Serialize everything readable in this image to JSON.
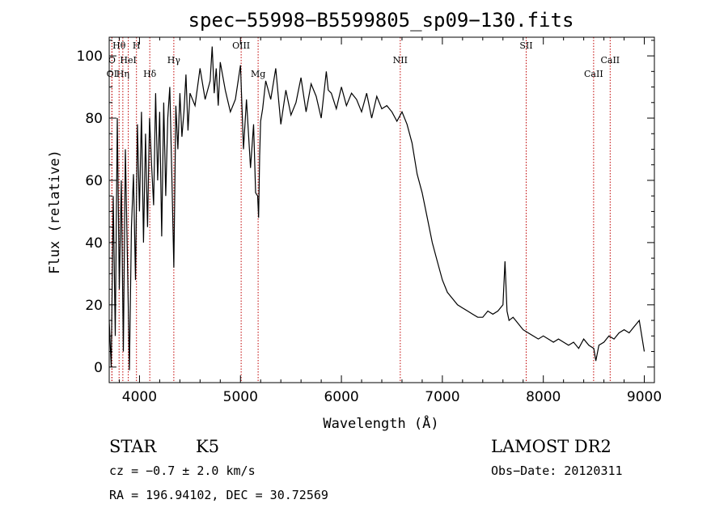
{
  "chart_data": {
    "type": "line",
    "title": "spec−55998−B5599805_sp09−130.fits",
    "xlabel": "Wavelength (Å)",
    "ylabel": "Flux (relative)",
    "xlim": [
      3700,
      9100
    ],
    "ylim": [
      -5,
      106
    ],
    "x_ticks": [
      4000,
      5000,
      6000,
      7000,
      8000,
      9000
    ],
    "y_ticks": [
      0,
      20,
      40,
      60,
      80,
      100
    ],
    "grid": false,
    "series": [
      {
        "x": [
          3700,
          3720,
          3740,
          3760,
          3780,
          3800,
          3820,
          3840,
          3860,
          3880,
          3900,
          3920,
          3940,
          3960,
          3980,
          4000,
          4020,
          4040,
          4060,
          4080,
          4100,
          4120,
          4140,
          4160,
          4180,
          4200,
          4220,
          4240,
          4260,
          4280,
          4300,
          4320,
          4340,
          4360,
          4380,
          4400,
          4420,
          4440,
          4460,
          4480,
          4500,
          4550,
          4600,
          4650,
          4700,
          4720,
          4740,
          4760,
          4780,
          4800,
          4850,
          4900,
          4950,
          5000,
          5030,
          5060,
          5100,
          5130,
          5150,
          5170,
          5180,
          5190,
          5200,
          5220,
          5250,
          5300,
          5350,
          5400,
          5450,
          5500,
          5550,
          5600,
          5650,
          5700,
          5750,
          5800,
          5850,
          5870,
          5900,
          5950,
          6000,
          6050,
          6100,
          6150,
          6200,
          6250,
          6300,
          6350,
          6400,
          6450,
          6500,
          6550,
          6600,
          6650,
          6700,
          6750,
          6800,
          6850,
          6900,
          6950,
          7000,
          7050,
          7100,
          7150,
          7200,
          7250,
          7300,
          7350,
          7400,
          7450,
          7500,
          7550,
          7600,
          7620,
          7640,
          7660,
          7700,
          7750,
          7800,
          7850,
          7900,
          7950,
          8000,
          8050,
          8100,
          8150,
          8200,
          8250,
          8300,
          8350,
          8400,
          8450,
          8500,
          8520,
          8550,
          8600,
          8650,
          8700,
          8750,
          8800,
          8850,
          8900,
          8950,
          9000
        ],
        "y": [
          15,
          0,
          55,
          10,
          80,
          25,
          60,
          5,
          70,
          35,
          -1,
          45,
          62,
          28,
          78,
          50,
          82,
          40,
          75,
          45,
          80,
          65,
          52,
          88,
          60,
          82,
          42,
          85,
          55,
          80,
          90,
          62,
          32,
          84,
          70,
          88,
          74,
          82,
          94,
          76,
          88,
          84,
          96,
          86,
          92,
          103,
          88,
          96,
          84,
          98,
          89,
          82,
          86,
          97,
          70,
          86,
          64,
          78,
          56,
          55,
          48,
          68,
          79,
          83,
          92,
          86,
          96,
          78,
          89,
          81,
          85,
          93,
          82,
          91,
          87,
          80,
          95,
          89,
          88,
          83,
          90,
          84,
          88,
          86,
          82,
          88,
          80,
          87,
          83,
          84,
          82,
          79,
          82,
          78,
          72,
          62,
          56,
          48,
          40,
          34,
          28,
          24,
          22,
          20,
          19,
          18,
          17,
          16,
          16,
          18,
          17,
          18,
          20,
          34,
          18,
          15,
          16,
          14,
          12,
          11,
          10,
          9,
          10,
          9,
          8,
          9,
          8,
          7,
          8,
          6,
          9,
          7,
          6,
          2,
          7,
          8,
          10,
          9,
          11,
          12,
          11,
          13,
          15,
          5
        ]
      }
    ],
    "lines": [
      {
        "label": "Hθ",
        "x": 3798,
        "row": 0
      },
      {
        "label": "H",
        "x": 3970,
        "row": 0
      },
      {
        "label": "O",
        "x": 3727,
        "row": 1
      },
      {
        "label": "HeI",
        "x": 3889,
        "row": 1
      },
      {
        "label": "OI",
        "x": 3727,
        "row": 2
      },
      {
        "label": "Hη",
        "x": 3835,
        "row": 2
      },
      {
        "label": "Hδ",
        "x": 4102,
        "row": 2
      },
      {
        "label": "Hγ",
        "x": 4340,
        "row": 1
      },
      {
        "label": "OIII",
        "x": 5007,
        "row": 0
      },
      {
        "label": "Mg",
        "x": 5175,
        "row": 2
      },
      {
        "label": "NII",
        "x": 6583,
        "row": 1
      },
      {
        "label": "SII",
        "x": 7830,
        "row": 0
      },
      {
        "label": "CaII",
        "x": 8662,
        "row": 1
      },
      {
        "label": "CaII",
        "x": 8498,
        "row": 2
      }
    ],
    "line_color": "#c00000"
  },
  "info": {
    "object_class": "STAR",
    "subclass": "K5",
    "cz": "cz = −0.7 ± 2.0 km/s",
    "coords": "RA = 196.94102, DEC =  30.72569",
    "survey": "LAMOST DR2",
    "obs_date": "Obs−Date: 20120311"
  }
}
